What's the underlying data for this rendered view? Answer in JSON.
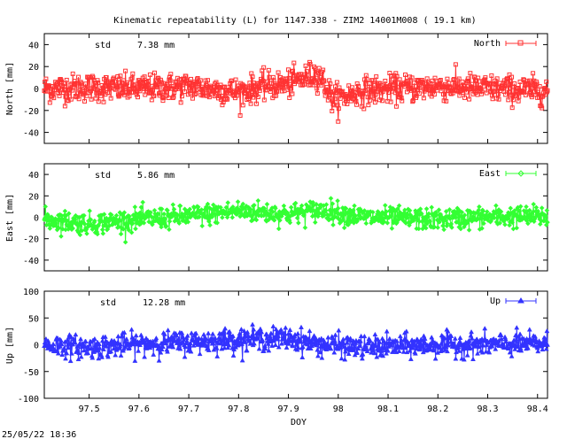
{
  "chart_data": {
    "type": "scatter",
    "title": "Kinematic repeatability (L) for 1147.338 - ZIM2 14001M008  ( 19.1 km)",
    "footer": "25/05/22 18:36",
    "xlabel": "DOY",
    "xlim": [
      97.41,
      98.42
    ],
    "xticks": [
      "97.5",
      "97.6",
      "97.7",
      "97.8",
      "97.9",
      "98",
      "98.1",
      "98.2",
      "98.3",
      "98.4"
    ],
    "panels": [
      {
        "id": "north",
        "ylabel": "North [mm]",
        "ylim": [
          -50,
          50
        ],
        "yticks": [
          "40",
          "20",
          "0",
          "-20",
          "-40"
        ],
        "std_label": "std",
        "std_value": "7.38 mm",
        "legend": "North",
        "color": "#ff3333",
        "marker": "square",
        "trend": [
          [
            97.41,
            0
          ],
          [
            97.5,
            1
          ],
          [
            97.6,
            0
          ],
          [
            97.7,
            2
          ],
          [
            97.8,
            -3
          ],
          [
            97.85,
            2
          ],
          [
            97.9,
            4
          ],
          [
            97.96,
            14
          ],
          [
            97.99,
            -10
          ],
          [
            98.05,
            -2
          ],
          [
            98.2,
            2
          ],
          [
            98.3,
            0
          ],
          [
            98.42,
            -2
          ]
        ],
        "spread": 7.4
      },
      {
        "id": "east",
        "ylabel": "East [mm]",
        "ylim": [
          -50,
          50
        ],
        "yticks": [
          "40",
          "20",
          "0",
          "-20",
          "-40"
        ],
        "std_label": "std",
        "std_value": "5.86 mm",
        "legend": "East",
        "color": "#33ff33",
        "marker": "diamond",
        "trend": [
          [
            97.41,
            -2
          ],
          [
            97.5,
            -6
          ],
          [
            97.6,
            -2
          ],
          [
            97.7,
            1
          ],
          [
            97.8,
            6
          ],
          [
            97.9,
            3
          ],
          [
            97.97,
            7
          ],
          [
            98.05,
            0
          ],
          [
            98.2,
            -2
          ],
          [
            98.3,
            0
          ],
          [
            98.42,
            1
          ]
        ],
        "spread": 5.9
      },
      {
        "id": "up",
        "ylabel": "Up [mm]",
        "ylim": [
          -100,
          100
        ],
        "yticks": [
          "100",
          "50",
          "0",
          "-50",
          "-100"
        ],
        "std_label": "std",
        "std_value": "12.28 mm",
        "legend": "Up",
        "color": "#3333ff",
        "marker": "triangle",
        "trend": [
          [
            97.41,
            0
          ],
          [
            97.5,
            -5
          ],
          [
            97.6,
            2
          ],
          [
            97.7,
            5
          ],
          [
            97.8,
            10
          ],
          [
            97.9,
            12
          ],
          [
            97.97,
            0
          ],
          [
            98.05,
            -5
          ],
          [
            98.2,
            0
          ],
          [
            98.3,
            0
          ],
          [
            98.42,
            2
          ]
        ],
        "spread": 12.3
      }
    ]
  }
}
